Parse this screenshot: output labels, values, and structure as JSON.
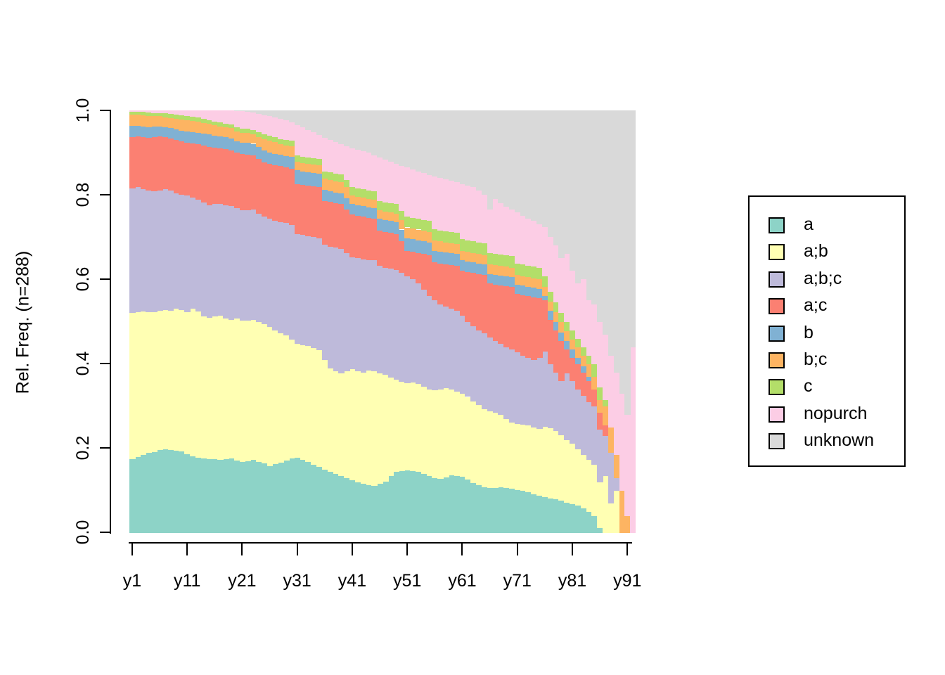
{
  "figure": {
    "background": "#FFFFFF"
  },
  "y_axis": {
    "label": "Rel. Freq. (n=288)",
    "ticks": [
      "0.0",
      "0.2",
      "0.4",
      "0.6",
      "0.8",
      "1.0"
    ],
    "range": [
      0,
      1
    ]
  },
  "x_axis": {
    "tick_labels": [
      "y1",
      "y11",
      "y21",
      "y31",
      "y41",
      "y51",
      "y61",
      "y71",
      "y81",
      "y91"
    ],
    "tick_bar_indices": [
      1,
      11,
      21,
      31,
      41,
      51,
      61,
      71,
      81,
      91
    ]
  },
  "legend": {
    "position": "right",
    "items": [
      {
        "label": "a",
        "color": "#8DD3C7"
      },
      {
        "label": "a;b",
        "color": "#FFFFB3"
      },
      {
        "label": "a;b;c",
        "color": "#BEBADA"
      },
      {
        "label": "a;c",
        "color": "#FB8072"
      },
      {
        "label": "b",
        "color": "#80B1D3"
      },
      {
        "label": "b;c",
        "color": "#FDB462"
      },
      {
        "label": "c",
        "color": "#B3DE69"
      },
      {
        "label": "nopurch",
        "color": "#FCCDE5"
      },
      {
        "label": "unknown",
        "color": "#D9D9D9"
      }
    ]
  },
  "chart_data": {
    "type": "bar",
    "subtype": "stacked-relative-frequency",
    "title": "",
    "xlabel": "",
    "ylabel": "Rel. Freq. (n=288)",
    "n_observations": 288,
    "ylim": [
      0,
      1
    ],
    "bar_count": 92,
    "bar_label_prefix": "y",
    "shown_x_ticks": [
      "y1",
      "y11",
      "y21",
      "y31",
      "y41",
      "y51",
      "y61",
      "y71",
      "y81",
      "y91"
    ],
    "stack_order": [
      "a",
      "a;b",
      "a;b;c",
      "a;c",
      "b",
      "b;c",
      "c",
      "nopurch",
      "unknown"
    ],
    "values_note": "cumulative_top = cumulative relative-frequency upper boundary of each stacked segment for bars y1..y92 (estimated from pixels); a segment's own value = its cumulative_top minus the previous series' cumulative_top.",
    "series": [
      {
        "name": "a",
        "color": "#8DD3C7",
        "cumulative_top": [
          0.175,
          0.18,
          0.185,
          0.19,
          0.192,
          0.196,
          0.198,
          0.197,
          0.195,
          0.193,
          0.186,
          0.182,
          0.178,
          0.176,
          0.175,
          0.174,
          0.173,
          0.174,
          0.176,
          0.172,
          0.168,
          0.17,
          0.173,
          0.168,
          0.164,
          0.158,
          0.163,
          0.166,
          0.171,
          0.176,
          0.178,
          0.173,
          0.168,
          0.162,
          0.157,
          0.15,
          0.145,
          0.14,
          0.135,
          0.13,
          0.125,
          0.12,
          0.117,
          0.114,
          0.112,
          0.116,
          0.122,
          0.135,
          0.145,
          0.147,
          0.148,
          0.147,
          0.145,
          0.14,
          0.135,
          0.13,
          0.128,
          0.132,
          0.137,
          0.135,
          0.133,
          0.127,
          0.118,
          0.113,
          0.108,
          0.107,
          0.106,
          0.108,
          0.107,
          0.105,
          0.102,
          0.1,
          0.096,
          0.092,
          0.088,
          0.085,
          0.082,
          0.08,
          0.076,
          0.072,
          0.068,
          0.065,
          0.058,
          0.05,
          0.04,
          0.012,
          0.0,
          0.0,
          0.0,
          0.0,
          0.0,
          0.0
        ]
      },
      {
        "name": "a;b",
        "color": "#FFFFB3",
        "cumulative_top": [
          0.52,
          0.522,
          0.524,
          0.523,
          0.523,
          0.526,
          0.528,
          0.525,
          0.53,
          0.528,
          0.522,
          0.53,
          0.524,
          0.512,
          0.51,
          0.512,
          0.515,
          0.507,
          0.505,
          0.508,
          0.503,
          0.502,
          0.505,
          0.5,
          0.494,
          0.487,
          0.479,
          0.473,
          0.467,
          0.457,
          0.447,
          0.445,
          0.443,
          0.437,
          0.432,
          0.41,
          0.389,
          0.383,
          0.377,
          0.382,
          0.387,
          0.383,
          0.379,
          0.385,
          0.382,
          0.378,
          0.374,
          0.368,
          0.362,
          0.358,
          0.354,
          0.356,
          0.352,
          0.346,
          0.34,
          0.338,
          0.34,
          0.342,
          0.34,
          0.335,
          0.33,
          0.322,
          0.312,
          0.303,
          0.293,
          0.288,
          0.284,
          0.28,
          0.27,
          0.262,
          0.258,
          0.256,
          0.255,
          0.25,
          0.246,
          0.252,
          0.248,
          0.242,
          0.232,
          0.22,
          0.212,
          0.198,
          0.185,
          0.173,
          0.162,
          0.12,
          0.135,
          0.07,
          0.1,
          0.0,
          0.0,
          0.0
        ]
      },
      {
        "name": "a;b;c",
        "color": "#BEBADA",
        "cumulative_top": [
          0.815,
          0.818,
          0.813,
          0.81,
          0.808,
          0.81,
          0.813,
          0.81,
          0.803,
          0.8,
          0.798,
          0.793,
          0.788,
          0.782,
          0.776,
          0.778,
          0.778,
          0.775,
          0.773,
          0.768,
          0.763,
          0.764,
          0.765,
          0.756,
          0.748,
          0.743,
          0.738,
          0.735,
          0.733,
          0.728,
          0.708,
          0.706,
          0.703,
          0.7,
          0.698,
          0.683,
          0.678,
          0.675,
          0.673,
          0.663,
          0.653,
          0.65,
          0.648,
          0.646,
          0.645,
          0.633,
          0.628,
          0.626,
          0.623,
          0.615,
          0.608,
          0.6,
          0.59,
          0.575,
          0.561,
          0.55,
          0.54,
          0.535,
          0.53,
          0.525,
          0.515,
          0.5,
          0.49,
          0.48,
          0.472,
          0.462,
          0.455,
          0.448,
          0.44,
          0.435,
          0.428,
          0.42,
          0.415,
          0.41,
          0.415,
          0.43,
          0.4,
          0.38,
          0.36,
          0.377,
          0.36,
          0.34,
          0.325,
          0.31,
          0.3,
          0.245,
          0.23,
          0.19,
          0.13,
          0.0,
          0.0,
          0.0
        ]
      },
      {
        "name": "a;c",
        "color": "#FB8072",
        "cumulative_top": [
          0.937,
          0.939,
          0.937,
          0.935,
          0.936,
          0.938,
          0.936,
          0.934,
          0.93,
          0.926,
          0.924,
          0.922,
          0.92,
          0.917,
          0.914,
          0.912,
          0.91,
          0.908,
          0.906,
          0.9,
          0.897,
          0.896,
          0.894,
          0.886,
          0.877,
          0.873,
          0.87,
          0.868,
          0.865,
          0.862,
          0.826,
          0.824,
          0.822,
          0.82,
          0.818,
          0.786,
          0.783,
          0.78,
          0.778,
          0.766,
          0.753,
          0.75,
          0.748,
          0.746,
          0.744,
          0.715,
          0.712,
          0.71,
          0.708,
          0.69,
          0.668,
          0.665,
          0.663,
          0.66,
          0.658,
          0.64,
          0.638,
          0.636,
          0.634,
          0.632,
          0.62,
          0.617,
          0.615,
          0.613,
          0.61,
          0.59,
          0.588,
          0.586,
          0.584,
          0.582,
          0.565,
          0.562,
          0.56,
          0.557,
          0.555,
          0.55,
          0.505,
          0.48,
          0.455,
          0.435,
          0.415,
          0.4,
          0.38,
          0.36,
          0.34,
          0.285,
          0.255,
          0.19,
          0.13,
          0.0,
          0.0,
          0.0
        ]
      },
      {
        "name": "b",
        "color": "#80B1D3",
        "cumulative_top": [
          0.963,
          0.964,
          0.962,
          0.96,
          0.961,
          0.962,
          0.96,
          0.958,
          0.955,
          0.952,
          0.95,
          0.949,
          0.947,
          0.945,
          0.943,
          0.94,
          0.938,
          0.936,
          0.934,
          0.927,
          0.924,
          0.923,
          0.921,
          0.913,
          0.905,
          0.9,
          0.897,
          0.895,
          0.892,
          0.89,
          0.858,
          0.856,
          0.854,
          0.852,
          0.85,
          0.812,
          0.809,
          0.806,
          0.804,
          0.792,
          0.778,
          0.775,
          0.773,
          0.771,
          0.769,
          0.743,
          0.74,
          0.738,
          0.736,
          0.718,
          0.698,
          0.695,
          0.693,
          0.69,
          0.688,
          0.668,
          0.666,
          0.664,
          0.662,
          0.66,
          0.645,
          0.642,
          0.64,
          0.638,
          0.635,
          0.613,
          0.611,
          0.609,
          0.607,
          0.605,
          0.588,
          0.585,
          0.583,
          0.58,
          0.578,
          0.561,
          0.525,
          0.5,
          0.475,
          0.455,
          0.435,
          0.415,
          0.395,
          0.37,
          0.34,
          0.285,
          0.255,
          0.19,
          0.13,
          0.0,
          0.0,
          0.0
        ]
      },
      {
        "name": "b;c",
        "color": "#FDB462",
        "cumulative_top": [
          0.99,
          0.99,
          0.988,
          0.986,
          0.986,
          0.986,
          0.984,
          0.982,
          0.98,
          0.978,
          0.976,
          0.975,
          0.973,
          0.97,
          0.968,
          0.965,
          0.962,
          0.96,
          0.958,
          0.95,
          0.947,
          0.946,
          0.944,
          0.937,
          0.932,
          0.928,
          0.925,
          0.92,
          0.917,
          0.915,
          0.878,
          0.876,
          0.874,
          0.872,
          0.87,
          0.838,
          0.835,
          0.832,
          0.83,
          0.818,
          0.798,
          0.795,
          0.793,
          0.791,
          0.789,
          0.763,
          0.76,
          0.758,
          0.756,
          0.74,
          0.723,
          0.72,
          0.718,
          0.715,
          0.713,
          0.692,
          0.69,
          0.688,
          0.686,
          0.684,
          0.668,
          0.665,
          0.663,
          0.66,
          0.658,
          0.636,
          0.634,
          0.632,
          0.63,
          0.628,
          0.61,
          0.607,
          0.605,
          0.602,
          0.6,
          0.582,
          0.548,
          0.523,
          0.5,
          0.478,
          0.458,
          0.44,
          0.42,
          0.4,
          0.37,
          0.315,
          0.3,
          0.25,
          0.185,
          0.1,
          0.04,
          0.0
        ]
      },
      {
        "name": "c",
        "color": "#B3DE69",
        "cumulative_top": [
          0.997,
          0.997,
          0.996,
          0.995,
          0.994,
          0.994,
          0.993,
          0.992,
          0.99,
          0.988,
          0.986,
          0.985,
          0.983,
          0.98,
          0.977,
          0.974,
          0.971,
          0.969,
          0.967,
          0.96,
          0.957,
          0.956,
          0.954,
          0.948,
          0.944,
          0.94,
          0.937,
          0.932,
          0.93,
          0.928,
          0.893,
          0.891,
          0.889,
          0.887,
          0.885,
          0.856,
          0.853,
          0.85,
          0.848,
          0.836,
          0.818,
          0.815,
          0.813,
          0.811,
          0.809,
          0.785,
          0.782,
          0.78,
          0.778,
          0.762,
          0.748,
          0.745,
          0.743,
          0.74,
          0.738,
          0.718,
          0.716,
          0.714,
          0.712,
          0.71,
          0.695,
          0.692,
          0.69,
          0.687,
          0.685,
          0.663,
          0.661,
          0.659,
          0.657,
          0.655,
          0.638,
          0.635,
          0.633,
          0.63,
          0.628,
          0.608,
          0.57,
          0.545,
          0.52,
          0.5,
          0.48,
          0.46,
          0.44,
          0.42,
          0.4,
          0.345,
          0.315,
          0.25,
          0.185,
          0.1,
          0.04,
          0.0
        ]
      },
      {
        "name": "nopurch",
        "color": "#FCCDE5",
        "cumulative_top": [
          1.0,
          1.0,
          1.0,
          1.0,
          1.0,
          1.0,
          1.0,
          1.0,
          1.0,
          1.0,
          1.0,
          1.0,
          1.0,
          1.0,
          1.0,
          1.0,
          1.0,
          1.0,
          1.0,
          0.999,
          0.998,
          0.997,
          0.995,
          0.992,
          0.989,
          0.986,
          0.983,
          0.98,
          0.976,
          0.972,
          0.965,
          0.96,
          0.954,
          0.948,
          0.941,
          0.935,
          0.93,
          0.925,
          0.92,
          0.915,
          0.911,
          0.907,
          0.903,
          0.9,
          0.894,
          0.888,
          0.883,
          0.878,
          0.873,
          0.869,
          0.865,
          0.86,
          0.856,
          0.852,
          0.847,
          0.843,
          0.84,
          0.837,
          0.833,
          0.83,
          0.826,
          0.822,
          0.818,
          0.81,
          0.8,
          0.765,
          0.79,
          0.78,
          0.772,
          0.765,
          0.758,
          0.75,
          0.744,
          0.738,
          0.73,
          0.723,
          0.7,
          0.68,
          0.65,
          0.66,
          0.62,
          0.59,
          0.6,
          0.55,
          0.54,
          0.5,
          0.47,
          0.42,
          0.38,
          0.33,
          0.28,
          0.44
        ]
      },
      {
        "name": "unknown",
        "color": "#D9D9D9",
        "cumulative_top": [
          1.0,
          1.0,
          1.0,
          1.0,
          1.0,
          1.0,
          1.0,
          1.0,
          1.0,
          1.0,
          1.0,
          1.0,
          1.0,
          1.0,
          1.0,
          1.0,
          1.0,
          1.0,
          1.0,
          1.0,
          1.0,
          1.0,
          1.0,
          1.0,
          1.0,
          1.0,
          1.0,
          1.0,
          1.0,
          1.0,
          1.0,
          1.0,
          1.0,
          1.0,
          1.0,
          1.0,
          1.0,
          1.0,
          1.0,
          1.0,
          1.0,
          1.0,
          1.0,
          1.0,
          1.0,
          1.0,
          1.0,
          1.0,
          1.0,
          1.0,
          1.0,
          1.0,
          1.0,
          1.0,
          1.0,
          1.0,
          1.0,
          1.0,
          1.0,
          1.0,
          1.0,
          1.0,
          1.0,
          1.0,
          1.0,
          1.0,
          1.0,
          1.0,
          1.0,
          1.0,
          1.0,
          1.0,
          1.0,
          1.0,
          1.0,
          1.0,
          1.0,
          1.0,
          1.0,
          1.0,
          1.0,
          1.0,
          1.0,
          1.0,
          1.0,
          1.0,
          1.0,
          1.0,
          1.0,
          1.0,
          1.0,
          1.0
        ]
      }
    ]
  }
}
